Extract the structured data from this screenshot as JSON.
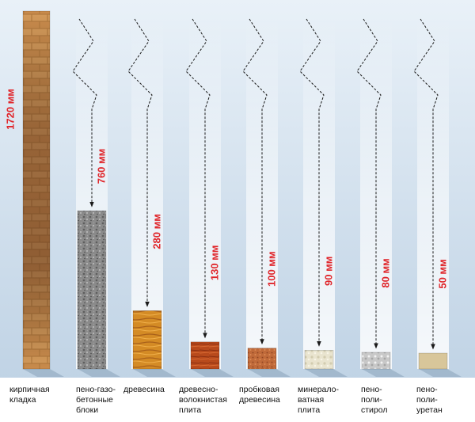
{
  "colors": {
    "label_red": "#e0262b",
    "background_top": "#e9f1f8",
    "background_bottom": "#bcd0e3",
    "caption_band": "#ffffff"
  },
  "chart_data": {
    "type": "bar",
    "unit": "мм",
    "materials": [
      {
        "caption": "кирпичная\nкладка",
        "value": 1720,
        "label": "1720 мм",
        "material_icon": "brick-texture"
      },
      {
        "caption": "пено-газо-\nбетонные\nблоки",
        "value": 760,
        "label": "760 мм",
        "material_icon": "aerated-concrete-texture"
      },
      {
        "caption": "древесина",
        "value": 280,
        "label": "280 мм",
        "material_icon": "wood-texture"
      },
      {
        "caption": "древесно-\nволокнистая\nплита",
        "value": 130,
        "label": "130 мм",
        "material_icon": "fiberboard-texture"
      },
      {
        "caption": "пробковая\nдревесина",
        "value": 100,
        "label": "100 мм",
        "material_icon": "cork-texture"
      },
      {
        "caption": "минерало-\nватная\nплита",
        "value": 90,
        "label": "90 мм",
        "material_icon": "mineral-wool-texture"
      },
      {
        "caption": "пено-\nполи-\nстирол",
        "value": 80,
        "label": "80 мм",
        "material_icon": "polystyrene-texture"
      },
      {
        "caption": "пено-\nполи-\nуретан",
        "value": 50,
        "label": "50 мм",
        "material_icon": "polyurethane-texture"
      }
    ]
  }
}
